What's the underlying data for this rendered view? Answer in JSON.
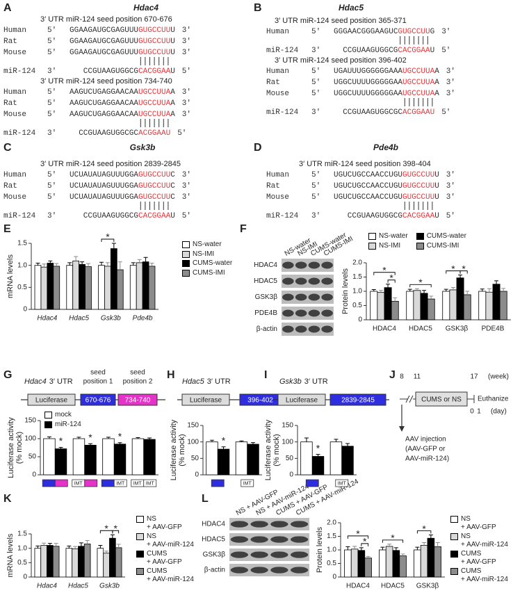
{
  "panels": {
    "letters": [
      "A",
      "B",
      "C",
      "D",
      "E",
      "F",
      "G",
      "H",
      "I",
      "J",
      "K",
      "L"
    ],
    "alignments": [
      {
        "gene": "Hdac4",
        "sites": [
          {
            "header": "3′ UTR miR-124 seed position 670-676",
            "rows": [
              {
                "species": "Human",
                "end_left": "5′",
                "seq": [
                  "GGAAGAUGCGAGUUU",
                  "GUGCCUU",
                  "U"
                ],
                "end_right": "3′"
              },
              {
                "species": "Rat",
                "end_left": "5′",
                "seq": [
                  "GGAAGAUGCGAGUUU",
                  "GUGCCUU",
                  "U"
                ],
                "end_right": "3′"
              },
              {
                "species": "Mouse",
                "end_left": "5′",
                "seq": [
                  "GGAAGAUGCGAGUUU",
                  "GUGCCUU",
                  "U"
                ],
                "end_right": "3′"
              }
            ],
            "mir": {
              "species": "miR-124",
              "end_left": "3′",
              "seq": [
                "CCGUAAGUGGCG",
                "CACGGAA",
                "U"
              ],
              "end_right": "5′"
            }
          },
          {
            "header": "3′ UTR miR-124 seed position 734-740",
            "rows": [
              {
                "species": "Human",
                "end_left": "5′",
                "seq": [
                  "AAGUCUGAGGAACAA",
                  "UGCCUUA",
                  "A"
                ],
                "end_right": "3′"
              },
              {
                "species": "Rat",
                "end_left": "5′",
                "seq": [
                  "AAGUCUGAGGAACAA",
                  "UGCCUUA",
                  "A"
                ],
                "end_right": "3′"
              },
              {
                "species": "Mouse",
                "end_left": "5′",
                "seq": [
                  "AAGUCUGAGGAACAA",
                  "UGCCUUA",
                  "A"
                ],
                "end_right": "3′"
              }
            ],
            "mir": {
              "species": "miR-124",
              "end_left": "3′",
              "seq": [
                "CCGUAAGUGGCGC",
                "ACGGAAU"
              ],
              "end_right": "5′"
            }
          }
        ]
      },
      {
        "gene": "Hdac5",
        "sites": [
          {
            "header": "3′ UTR miR-124 seed position 365-371",
            "rows": [
              {
                "species": "Human",
                "end_left": "5′",
                "seq": [
                  "GGGAACGGGAAGUC",
                  "GUGCCUU",
                  "G"
                ],
                "end_right": "3′"
              }
            ],
            "mir": {
              "species": "miR-124",
              "end_left": "3′",
              "seq": [
                "CCGUAAGUGGCG",
                "CACGGAA",
                "U"
              ],
              "end_right": "5′"
            }
          },
          {
            "header": "3′ UTR miR-124 seed position 396-402",
            "rows": [
              {
                "species": "Human",
                "end_left": "5′",
                "seq": [
                  "UGAUUUGGGGGGAAA",
                  "UGCCUUA",
                  "A"
                ],
                "end_right": "3′"
              },
              {
                "species": "Rat",
                "end_left": "5′",
                "seq": [
                  "UGGCUUUUGGGGGAA",
                  "UGCCUUA",
                  "A"
                ],
                "end_right": "3′"
              },
              {
                "species": "Mouse",
                "end_left": "5′",
                "seq": [
                  "UGGCUUUUGGGGGAA",
                  "UGCCUUA",
                  "A"
                ],
                "end_right": "3′"
              }
            ],
            "mir": {
              "species": "miR-124",
              "end_left": "3′",
              "seq": [
                "CCGUAAGUGGCGC",
                "ACGGAAU"
              ],
              "end_right": "5′"
            }
          }
        ]
      },
      {
        "gene": "Gsk3b",
        "sites": [
          {
            "header": "3′ UTR miR-124 seed position 2839-2845",
            "rows": [
              {
                "species": "Human",
                "end_left": "5′",
                "seq": [
                  "UCUAUAUAGUUUGGA",
                  "GUGCCUU",
                  "C"
                ],
                "end_right": "3′"
              },
              {
                "species": "Rat",
                "end_left": "5′",
                "seq": [
                  "UCUAUAUAGUUUGGA",
                  "GUGCCUU",
                  "C"
                ],
                "end_right": "3′"
              },
              {
                "species": "Mouse",
                "end_left": "5′",
                "seq": [
                  "UCUAUAUAGUUUGGA",
                  "GUGCCUU",
                  "C"
                ],
                "end_right": "3′"
              }
            ],
            "mir": {
              "species": "miR-124",
              "end_left": "3′",
              "seq": [
                "CCGUAAGUGGCG",
                "CACGGAA",
                "U"
              ],
              "end_right": "5′"
            }
          }
        ]
      },
      {
        "gene": "Pde4b",
        "sites": [
          {
            "header": "3′ UTR miR-124 seed position 398-404",
            "rows": [
              {
                "species": "Human",
                "end_left": "5′",
                "seq": [
                  "UGUCUGCCAACCUGU",
                  "GUGCCUU",
                  "U"
                ],
                "end_right": "3′"
              },
              {
                "species": "Rat",
                "end_left": "5′",
                "seq": [
                  "UGUCUGCCAACCUGU",
                  "GUGCCUU",
                  "U"
                ],
                "end_right": "3′"
              },
              {
                "species": "Mouse",
                "end_left": "5′",
                "seq": [
                  "UGUCUGCCAACCUGU",
                  "GUGCCUU",
                  "U"
                ],
                "end_right": "3′"
              }
            ],
            "mir": {
              "species": "miR-124",
              "end_left": "3′",
              "seq": [
                "CCGUAAGUGGCG",
                "CACGGAA",
                "U"
              ],
              "end_right": "5′"
            }
          }
        ]
      }
    ],
    "blots": [
      {
        "lanes": [
          "NS-water",
          "NS-IMI",
          "CUMS-water",
          "CUMS-IMI"
        ],
        "rows": [
          "HDAC4",
          "HDAC5",
          "GSK3β",
          "PDE4B",
          "β-actin"
        ]
      },
      {
        "lanes": [
          "NS + AAV-GFP",
          "NS + AAV-miR-124",
          "CUMS + AAV-GFP",
          "CUMS + AAV-miR-124"
        ],
        "rows": [
          "HDAC4",
          "HDAC5",
          "GSK3β",
          "β-actin"
        ]
      }
    ],
    "constructs": [
      {
        "gene": "Hdac4",
        "suffix": "3′ UTR",
        "reporter": "Luciferase",
        "sites": [
          "670-676",
          "734-740"
        ],
        "seed_labels": [
          [
            "seed",
            "position 1"
          ],
          [
            "seed",
            "position 2"
          ]
        ]
      },
      {
        "gene": "Hdac5",
        "suffix": "3′ UTR",
        "reporter": "Luciferase",
        "sites": [
          "396-402"
        ]
      },
      {
        "gene": "Gsk3b",
        "suffix": "3′ UTR",
        "reporter": "Luciferase",
        "sites": [
          "2839-2845"
        ]
      }
    ],
    "timeline": {
      "weeks": [
        "8",
        "11",
        "17"
      ],
      "week_unit": "(week)",
      "box": "CUMS or NS",
      "end": "Euthanize",
      "days": [
        "0",
        "1"
      ],
      "day_unit": "(day)",
      "injection": [
        "AAV injection",
        "(AAV-GFP or",
        "AAV-miR-124)"
      ]
    }
  },
  "chart_data": [
    {
      "type": "bar",
      "ylabel": [
        "mRNA levels"
      ],
      "italic_categories": true,
      "categories": [
        "Hdac4",
        "Hdac5",
        "Gsk3b",
        "Pde4b"
      ],
      "series": [
        {
          "name": "NS-water",
          "color": "#ffffff",
          "values": [
            1.0,
            1.0,
            1.0,
            1.0
          ],
          "errors": [
            0.05,
            0.06,
            0.07,
            0.06
          ]
        },
        {
          "name": "NS-IMI",
          "color": "#d9d9d9",
          "values": [
            0.96,
            1.1,
            0.98,
            1.06
          ],
          "errors": [
            0.07,
            0.1,
            0.08,
            0.07
          ]
        },
        {
          "name": "CUMS-water",
          "color": "#000000",
          "values": [
            1.05,
            1.02,
            1.38,
            1.08
          ],
          "errors": [
            0.05,
            0.06,
            0.12,
            0.1
          ]
        },
        {
          "name": "CUMS-IMI",
          "color": "#8c8c8c",
          "values": [
            0.98,
            0.97,
            0.9,
            0.98
          ],
          "errors": [
            0.06,
            0.07,
            0.18,
            0.07
          ]
        }
      ],
      "ylim": [
        0,
        1.5
      ],
      "yticks": [
        0,
        0.5,
        {
          "value": 1,
          "label": "1.0"
        },
        1.5
      ],
      "significance": [
        {
          "label": "*",
          "category": 2,
          "series": [
            0,
            2
          ]
        }
      ]
    },
    {
      "type": "bar",
      "ylabel": [
        "Protein levels"
      ],
      "italic_categories": false,
      "categories": [
        "HDAC4",
        "HDAC5",
        "GSK3β",
        "PDE4B"
      ],
      "series": [
        {
          "name": "NS-water",
          "color": "#ffffff",
          "values": [
            1.0,
            1.0,
            1.0,
            1.0
          ],
          "errors": [
            0.06,
            0.07,
            0.07,
            0.08
          ]
        },
        {
          "name": "NS-IMI",
          "color": "#d9d9d9",
          "values": [
            0.96,
            1.03,
            1.05,
            0.97
          ],
          "errors": [
            0.07,
            0.06,
            0.08,
            0.12
          ]
        },
        {
          "name": "CUMS-water",
          "color": "#000000",
          "values": [
            1.13,
            0.93,
            1.47,
            1.25
          ],
          "errors": [
            0.12,
            0.1,
            0.1,
            0.12
          ]
        },
        {
          "name": "CUMS-IMI",
          "color": "#8c8c8c",
          "values": [
            0.65,
            0.73,
            0.88,
            1.0
          ],
          "errors": [
            0.12,
            0.1,
            0.12,
            0.1
          ]
        }
      ],
      "ylim": [
        0,
        2
      ],
      "yticks": [
        0,
        0.5,
        {
          "value": 1,
          "label": "1.0"
        },
        1.5,
        {
          "value": 2,
          "label": "2.0"
        }
      ],
      "significance": [
        {
          "label": "*",
          "category": 0,
          "series": [
            2,
            3
          ]
        },
        {
          "label": "*",
          "category": 0,
          "series": [
            0,
            3
          ]
        },
        {
          "label": "*",
          "category": 1,
          "series": [
            0,
            3
          ]
        },
        {
          "label": "*",
          "category": 2,
          "series": [
            0,
            2
          ]
        },
        {
          "label": "*",
          "category": 2,
          "series": [
            2,
            3
          ]
        }
      ]
    },
    {
      "type": "bar",
      "ylabel": [
        "Luciferase activity",
        "(% mock)"
      ],
      "categories": [
        [
          null,
          null
        ],
        [
          "IMT",
          null
        ],
        [
          null,
          "IMT"
        ],
        [
          "IMT",
          "IMT"
        ]
      ],
      "site_colors": [
        "#2e2ee0",
        "#e532c8"
      ],
      "series": [
        {
          "name": "mock",
          "color": "#ffffff",
          "values": [
            100,
            100,
            100,
            100
          ],
          "errors": [
            5,
            4,
            4,
            3
          ]
        },
        {
          "name": "miR-124",
          "color": "#000000",
          "values": [
            72,
            82,
            85,
            98
          ],
          "errors": [
            4,
            4,
            4,
            4
          ]
        }
      ],
      "ylim": [
        0,
        150
      ],
      "yticks": [
        0,
        50,
        100,
        150
      ],
      "significance": [
        {
          "label": "*",
          "category": 0,
          "series": [
            1,
            1
          ]
        },
        {
          "label": "*",
          "category": 1,
          "series": [
            1,
            1
          ]
        },
        {
          "label": "*",
          "category": 2,
          "series": [
            1,
            1
          ]
        }
      ]
    },
    {
      "type": "bar",
      "ylabel": [
        "Luciferase activity",
        "(% mock)"
      ],
      "categories": [
        [
          null
        ],
        [
          "IMT"
        ]
      ],
      "site_colors": [
        "#2e2ee0"
      ],
      "series": [
        {
          "color": "#ffffff",
          "values": [
            100,
            100
          ],
          "errors": [
            5,
            3
          ]
        },
        {
          "color": "#000000",
          "values": [
            78,
            93
          ],
          "errors": [
            7,
            5
          ]
        }
      ],
      "ylim": [
        0,
        150
      ],
      "yticks": [
        0,
        50,
        100,
        150
      ],
      "significance": [
        {
          "label": "*",
          "category": 0,
          "series": [
            1,
            1
          ]
        }
      ]
    },
    {
      "type": "bar",
      "ylabel": [
        "Luciferase activity",
        "(% mock)"
      ],
      "categories": [
        [
          null
        ],
        [
          "IMT"
        ]
      ],
      "site_colors": [
        "#2e2ee0"
      ],
      "series": [
        {
          "color": "#ffffff",
          "values": [
            100,
            100
          ],
          "errors": [
            12,
            8
          ]
        },
        {
          "color": "#000000",
          "values": [
            56,
            87
          ],
          "errors": [
            6,
            8
          ]
        }
      ],
      "ylim": [
        0,
        150
      ],
      "yticks": [
        0,
        50,
        100,
        150
      ],
      "significance": [
        {
          "label": "*",
          "category": 0,
          "series": [
            1,
            1
          ]
        }
      ]
    },
    {
      "type": "bar",
      "ylabel": [
        "mRNA levels"
      ],
      "italic_categories": true,
      "categories": [
        "Hdac4",
        "Hdac5",
        "Gsk3b"
      ],
      "series": [
        {
          "name": "NS\n+ AAV-GFP",
          "color": "#ffffff",
          "values": [
            1.0,
            1.0,
            1.0
          ],
          "errors": [
            0.08,
            0.08,
            0.1
          ]
        },
        {
          "name": "NS\n+ AAV-miR-124",
          "color": "#d9d9d9",
          "values": [
            1.1,
            0.98,
            0.83
          ],
          "errors": [
            0.08,
            0.08,
            0.07
          ]
        },
        {
          "name": "CUMS\n+ AAV-GFP",
          "color": "#000000",
          "values": [
            1.1,
            1.07,
            1.35
          ],
          "errors": [
            0.07,
            0.12,
            0.12
          ]
        },
        {
          "name": "CUMS\n+ AAV-miR-124",
          "color": "#8c8c8c",
          "values": [
            1.07,
            1.15,
            1.02
          ],
          "errors": [
            0.1,
            0.12,
            0.12
          ]
        }
      ],
      "ylim": [
        0,
        1.5
      ],
      "yticks": [
        0,
        0.5,
        {
          "value": 1,
          "label": "1.0"
        },
        1.5
      ],
      "significance": [
        {
          "label": "*",
          "category": 2,
          "series": [
            0,
            2
          ]
        },
        {
          "label": "*",
          "category": 2,
          "series": [
            2,
            3
          ]
        }
      ]
    },
    {
      "type": "bar",
      "ylabel": [
        "Protein levels"
      ],
      "italic_categories": false,
      "categories": [
        "HDAC4",
        "HDAC5",
        "GSK3β"
      ],
      "series": [
        {
          "name": "NS\n+ AAV-GFP",
          "color": "#ffffff",
          "values": [
            1.0,
            1.0,
            1.0
          ],
          "errors": [
            0.12,
            0.1,
            0.1
          ]
        },
        {
          "name": "NS\n+ AAV-miR-124",
          "color": "#d9d9d9",
          "values": [
            1.03,
            1.13,
            1.17
          ],
          "errors": [
            0.1,
            0.08,
            0.1
          ]
        },
        {
          "name": "CUMS\n+ AAV-GFP",
          "color": "#000000",
          "values": [
            0.98,
            0.98,
            1.43
          ],
          "errors": [
            0.1,
            0.1,
            0.12
          ]
        },
        {
          "name": "CUMS\n+ AAV-miR-124",
          "color": "#8c8c8c",
          "values": [
            0.7,
            0.78,
            1.12
          ],
          "errors": [
            0.06,
            0.07,
            0.15
          ]
        }
      ],
      "ylim": [
        0,
        2
      ],
      "yticks": [
        0,
        0.5,
        {
          "value": 1,
          "label": "1.0"
        },
        1.5,
        {
          "value": 2,
          "label": "2.0"
        }
      ],
      "significance": [
        {
          "label": "*",
          "category": 0,
          "series": [
            2,
            3
          ]
        },
        {
          "label": "*",
          "category": 0,
          "series": [
            0,
            3
          ]
        },
        {
          "label": "*",
          "category": 1,
          "series": [
            0,
            3
          ]
        },
        {
          "label": "*",
          "category": 2,
          "series": [
            0,
            2
          ]
        }
      ]
    }
  ]
}
